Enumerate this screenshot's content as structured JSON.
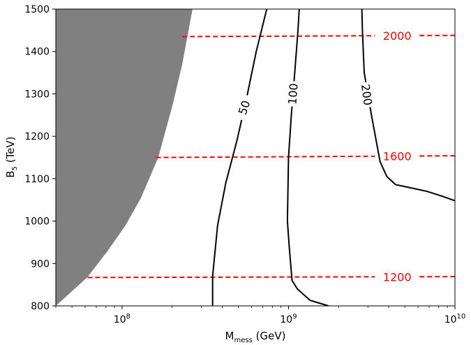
{
  "chart_data": {
    "type": "line",
    "title": "",
    "xlabel": {
      "base": "M",
      "sub": "mess",
      "unit": "(GeV)"
    },
    "ylabel": {
      "base": "B",
      "sub": "5",
      "unit": "(TeV)"
    },
    "xscale": "log",
    "xlim": [
      40000000,
      10000000000
    ],
    "ylim": [
      800,
      1500
    ],
    "x_ticks": [
      {
        "value": 100000000,
        "base": "10",
        "exp": "8"
      },
      {
        "value": 1000000000,
        "base": "10",
        "exp": "9"
      },
      {
        "value": 10000000000,
        "base": "10",
        "exp": "10"
      }
    ],
    "y_ticks": [
      800,
      900,
      1000,
      1100,
      1200,
      1300,
      1400,
      1500
    ],
    "grid": false,
    "excluded_region": {
      "color": "#808080",
      "boundary": [
        [
          40000000,
          800
        ],
        [
          62000000,
          868
        ],
        [
          82000000,
          930
        ],
        [
          105000000,
          990
        ],
        [
          130000000,
          1055
        ],
        [
          165000000,
          1150
        ],
        [
          200000000,
          1270
        ],
        [
          230000000,
          1370
        ],
        [
          265000000,
          1500
        ]
      ]
    },
    "contours": [
      {
        "label": "50",
        "color": "#000000",
        "points": [
          [
            350000000,
            800
          ],
          [
            350000000,
            870
          ],
          [
            375000000,
            990
          ],
          [
            420000000,
            1090
          ],
          [
            490000000,
            1190
          ],
          [
            560000000,
            1290
          ],
          [
            640000000,
            1400
          ],
          [
            740000000,
            1500
          ]
        ],
        "label_at": [
          540000000,
          1268
        ],
        "label_angle": -72
      },
      {
        "label": "100",
        "color": "#000000",
        "points": [
          [
            1740000000,
            800
          ],
          [
            1350000000,
            813
          ],
          [
            1130000000,
            840
          ],
          [
            1050000000,
            860
          ],
          [
            1010000000,
            940
          ],
          [
            985000000,
            1000
          ],
          [
            990000000,
            1050
          ],
          [
            1000000000,
            1150
          ],
          [
            1040000000,
            1250
          ],
          [
            1090000000,
            1350
          ],
          [
            1140000000,
            1450
          ],
          [
            1160000000,
            1500
          ]
        ],
        "label_at": [
          1060000000,
          1300
        ],
        "label_angle": -86
      },
      {
        "label": "200",
        "color": "#000000",
        "points": [
          [
            10000000000,
            1048
          ],
          [
            8200000000,
            1060
          ],
          [
            6800000000,
            1070
          ],
          [
            5500000000,
            1078
          ],
          [
            4400000000,
            1086
          ],
          [
            3900000000,
            1105
          ],
          [
            3550000000,
            1140
          ],
          [
            3150000000,
            1250
          ],
          [
            2850000000,
            1350
          ],
          [
            2780000000,
            1450
          ],
          [
            2760000000,
            1500
          ]
        ],
        "label_at": [
          2960000000,
          1298
        ],
        "label_angle": 82
      }
    ],
    "reference_lines": [
      {
        "label": "2000",
        "y": [
          1435,
          1438
        ],
        "x_start": 230000000,
        "color": "#ff0000",
        "label_at_x": 4500000000
      },
      {
        "label": "1600",
        "y": [
          1150,
          1154
        ],
        "x_start": 160000000,
        "color": "#ff0000",
        "label_at_x": 4500000000
      },
      {
        "label": "1200",
        "y": [
          867,
          869
        ],
        "x_start": 62000000,
        "color": "#ff0000",
        "label_at_x": 4500000000
      }
    ]
  }
}
